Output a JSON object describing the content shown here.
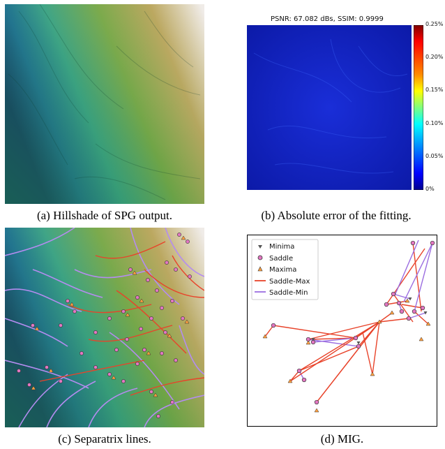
{
  "figure": {
    "captions": {
      "a": "(a) Hillshade of SPG output.",
      "b": "(b) Absolute error of the fitting.",
      "c": "(c) Separatrix lines.",
      "d": "(d) MIG."
    },
    "panel_b": {
      "title": "PSNR: 67.082 dBs, SSIM: 0.9999",
      "colorbar_ticks": [
        "0.25%",
        "0.20%",
        "0.15%",
        "0.10%",
        "0.05%",
        "0%"
      ],
      "colorbar_colors": [
        "#7f0000",
        "#ff0000",
        "#ff8c00",
        "#ffff00",
        "#7fff7f",
        "#00ffff",
        "#007fff",
        "#0000ff",
        "#00008f"
      ]
    },
    "panel_d": {
      "legend": [
        "Minima",
        "Saddle",
        "Maxima",
        "Saddle-Max",
        "Saddle-Min"
      ],
      "colors": {
        "minima": "#555555",
        "saddle": "#e377c2",
        "maxima": "#ff9f40",
        "saddle_max": "#e8432a",
        "saddle_min": "#9b6de0"
      }
    }
  }
}
